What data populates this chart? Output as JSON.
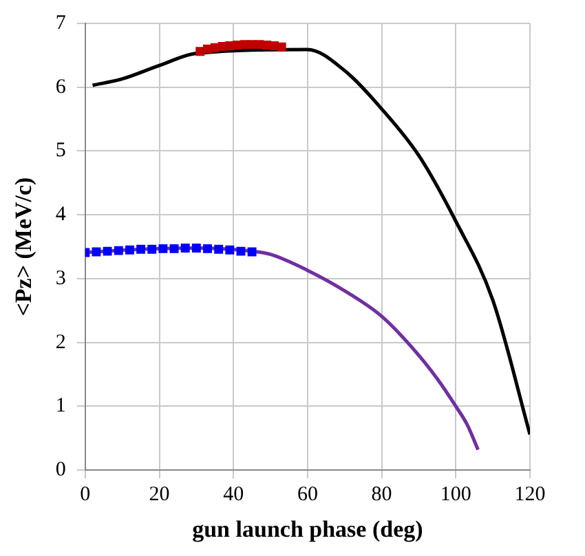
{
  "chart_data": {
    "type": "line",
    "xlabel": "gun launch phase (deg)",
    "ylabel": "<Pz> (MeV/c)",
    "xlim": [
      0,
      120
    ],
    "xticks": [
      0,
      20,
      40,
      60,
      80,
      100,
      120
    ],
    "ylim": [
      0,
      7
    ],
    "yticks": [
      0,
      1,
      2,
      3,
      4,
      5,
      6,
      7
    ],
    "grid": true,
    "legend": false,
    "series": [
      {
        "type": "line",
        "color": "#000000",
        "marker": "none",
        "x": [
          2,
          10,
          20,
          30,
          40,
          50,
          60,
          70,
          80,
          90,
          100,
          110,
          120
        ],
        "values": [
          6.03,
          6.13,
          6.34,
          6.53,
          null,
          null,
          6.59,
          6.26,
          5.66,
          4.93,
          3.9,
          2.66,
          0.56
        ]
      },
      {
        "type": "scatter",
        "color": "#c00000",
        "marker": "square",
        "x": [
          31,
          33,
          35,
          37,
          39,
          41,
          43,
          45,
          47,
          49,
          51,
          53
        ],
        "values": [
          6.56,
          6.6,
          6.62,
          6.64,
          6.65,
          6.66,
          6.67,
          6.67,
          6.67,
          6.66,
          6.65,
          6.63
        ]
      },
      {
        "type": "line",
        "color": "#7030a0",
        "marker": "none",
        "x": [
          0,
          15,
          30,
          45,
          50,
          60,
          70,
          80,
          90,
          95,
          100,
          103,
          106
        ],
        "values": [
          3.41,
          3.46,
          3.48,
          3.43,
          3.38,
          3.13,
          2.81,
          2.41,
          1.8,
          1.43,
          1.0,
          0.72,
          0.32
        ]
      },
      {
        "type": "scatter",
        "color": "#0000ff",
        "marker": "square",
        "x": [
          0,
          3,
          6,
          9,
          12,
          15,
          18,
          21,
          24,
          27,
          30,
          33,
          36,
          39,
          42,
          45
        ],
        "values": [
          3.41,
          3.42,
          3.43,
          3.44,
          3.45,
          3.46,
          3.46,
          3.47,
          3.47,
          3.48,
          3.48,
          3.47,
          3.46,
          3.45,
          3.43,
          3.42
        ]
      }
    ]
  }
}
